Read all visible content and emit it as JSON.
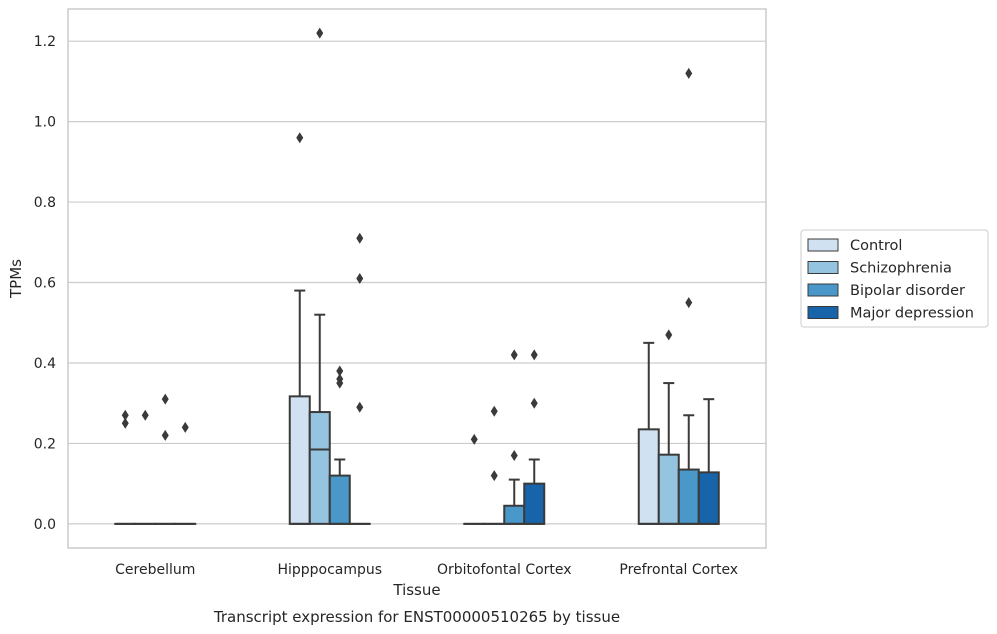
{
  "chart_data": {
    "type": "box",
    "xlabel": "Tissue",
    "ylabel": "TPMs",
    "caption": "Transcript expression for ENST00000510265 by tissue",
    "categories": [
      "Cerebellum",
      "Hipppocampus",
      "Orbitofontal Cortex",
      "Prefrontal Cortex"
    ],
    "ylim": [
      -0.06,
      1.28
    ],
    "yticks": [
      "0.0",
      "0.2",
      "0.4",
      "0.6",
      "0.8",
      "1.0",
      "1.2"
    ],
    "grid": "y",
    "legend_position": "right",
    "series": [
      {
        "name": "Control",
        "color": "#d0e1f2",
        "boxes": [
          {
            "min": 0,
            "q1": 0,
            "median": 0,
            "q3": 0,
            "max": 0,
            "outliers": [
              0.27,
              0.25
            ]
          },
          {
            "min": 0,
            "q1": 0,
            "median": 0,
            "q3": 0.317,
            "max": 0.58,
            "outliers": [
              0.96
            ]
          },
          {
            "min": 0,
            "q1": 0,
            "median": 0,
            "q3": 0,
            "max": 0,
            "outliers": [
              0.21
            ]
          },
          {
            "min": 0,
            "q1": 0,
            "median": 0,
            "q3": 0.235,
            "max": 0.45,
            "outliers": []
          }
        ]
      },
      {
        "name": "Schizophrenia",
        "color": "#94c4df",
        "boxes": [
          {
            "min": 0,
            "q1": 0,
            "median": 0,
            "q3": 0,
            "max": 0,
            "outliers": [
              0.27
            ]
          },
          {
            "min": 0,
            "q1": 0,
            "median": 0.185,
            "q3": 0.278,
            "max": 0.52,
            "outliers": [
              1.22
            ]
          },
          {
            "min": 0,
            "q1": 0,
            "median": 0,
            "q3": 0,
            "max": 0,
            "outliers": [
              0.28,
              0.12
            ]
          },
          {
            "min": 0,
            "q1": 0,
            "median": 0,
            "q3": 0.172,
            "max": 0.35,
            "outliers": [
              0.47
            ]
          }
        ]
      },
      {
        "name": "Bipolar disorder",
        "color": "#4a98c9",
        "boxes": [
          {
            "min": 0,
            "q1": 0,
            "median": 0,
            "q3": 0,
            "max": 0,
            "outliers": [
              0.31,
              0.22
            ]
          },
          {
            "min": 0,
            "q1": 0,
            "median": 0,
            "q3": 0.12,
            "max": 0.16,
            "outliers": [
              0.38,
              0.36,
              0.35
            ]
          },
          {
            "min": 0,
            "q1": 0,
            "median": 0,
            "q3": 0.045,
            "max": 0.11,
            "outliers": [
              0.42,
              0.17
            ]
          },
          {
            "min": 0,
            "q1": 0,
            "median": 0,
            "q3": 0.135,
            "max": 0.27,
            "outliers": [
              0.55,
              1.12
            ]
          }
        ]
      },
      {
        "name": "Major depression",
        "color": "#1764ab",
        "boxes": [
          {
            "min": 0,
            "q1": 0,
            "median": 0,
            "q3": 0,
            "max": 0,
            "outliers": [
              0.24
            ]
          },
          {
            "min": 0,
            "q1": 0,
            "median": 0,
            "q3": 0,
            "max": 0,
            "outliers": [
              0.71,
              0.61,
              0.29
            ]
          },
          {
            "min": 0,
            "q1": 0,
            "median": 0,
            "q3": 0.1,
            "max": 0.16,
            "outliers": [
              0.42,
              0.3
            ]
          },
          {
            "min": 0,
            "q1": 0,
            "median": 0,
            "q3": 0.128,
            "max": 0.31,
            "outliers": []
          }
        ]
      }
    ]
  }
}
